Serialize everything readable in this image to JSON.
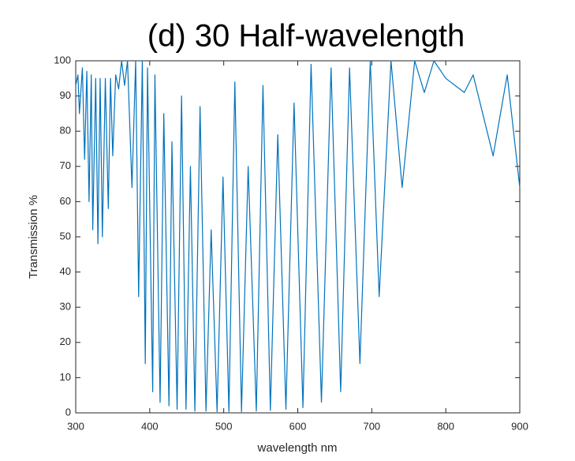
{
  "chart_data": {
    "type": "line",
    "title": "(d) 30 Half-wavelength",
    "xlabel": "wavelength nm",
    "ylabel": "Transmission %",
    "x": [
      300,
      303,
      305,
      309,
      312,
      315,
      318,
      321,
      323,
      327,
      330,
      333,
      336,
      340,
      344,
      347,
      350,
      354,
      358,
      362,
      366,
      370,
      376,
      381,
      385,
      390,
      394,
      397,
      404,
      407,
      414,
      419,
      426,
      430,
      437,
      443,
      449,
      455,
      461,
      468,
      476,
      483,
      491,
      499,
      507,
      515,
      524,
      533,
      544,
      553,
      563,
      573,
      584,
      595,
      607,
      618,
      632,
      645,
      658,
      670,
      684,
      698,
      710,
      726,
      741,
      758,
      771,
      784,
      800,
      825,
      837,
      864,
      883,
      900
    ],
    "series": [
      {
        "color": "#0072bd",
        "values": [
          93,
          96,
          85,
          98,
          72,
          97,
          60,
          96,
          52,
          95,
          48,
          95,
          50,
          95,
          58,
          95,
          73,
          96,
          92,
          100,
          93,
          100,
          64,
          100,
          33,
          100,
          14,
          98,
          6,
          96,
          3,
          85,
          2,
          77,
          1,
          90,
          1,
          70,
          0.5,
          87,
          0.5,
          52,
          0.3,
          67,
          0.3,
          94,
          0.3,
          70,
          0.5,
          93,
          0.7,
          79,
          1,
          88,
          1.5,
          99,
          3,
          98,
          6,
          98,
          14,
          100,
          33,
          100,
          64,
          100,
          91,
          100,
          95,
          91,
          96,
          73,
          96,
          64
        ]
      }
    ],
    "xlim": [
      300,
      900
    ],
    "xticks": [
      300,
      400,
      500,
      600,
      700,
      800,
      900
    ],
    "ylim": [
      0,
      100
    ],
    "yticks": [
      0,
      10,
      20,
      30,
      40,
      50,
      60,
      70,
      80,
      90,
      100
    ]
  }
}
